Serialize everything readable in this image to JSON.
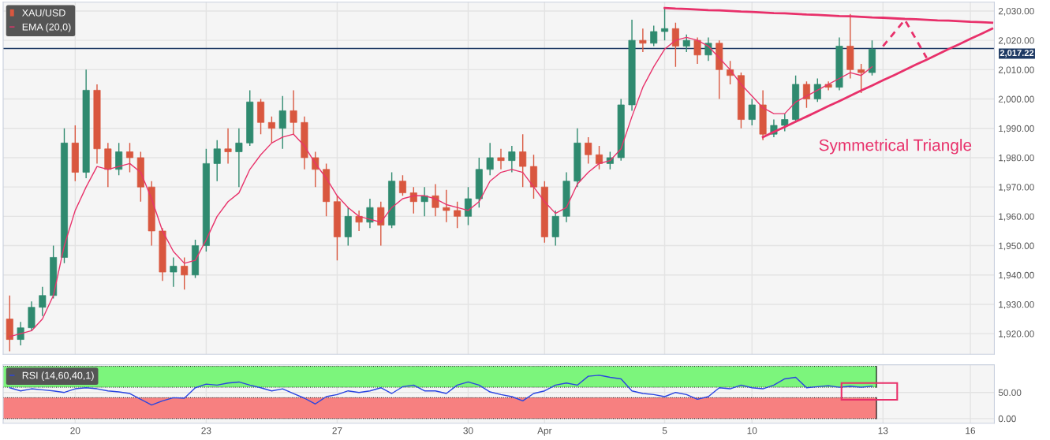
{
  "chart_data": [
    {
      "type": "candlestick",
      "categories": [
        null,
        null,
        null,
        null,
        null,
        null,
        null,
        null,
        null,
        null,
        null,
        null,
        null,
        null,
        null,
        null,
        null,
        null,
        null,
        null,
        null,
        null,
        null,
        null,
        null,
        null,
        null,
        null,
        null,
        null,
        null,
        null,
        null,
        null,
        null,
        null,
        null,
        null,
        null,
        null,
        null,
        null,
        null,
        null,
        null,
        null,
        null,
        null,
        null,
        null,
        null,
        null,
        null,
        null,
        null,
        null,
        null,
        null,
        null,
        null,
        null,
        null,
        null,
        null,
        null,
        null,
        null,
        null,
        null,
        null,
        null,
        null,
        null,
        null,
        null,
        null,
        null,
        null,
        null,
        null,
        null,
        null,
        null,
        null,
        null,
        null,
        null,
        null,
        null,
        null,
        null
      ],
      "ylim": [
        1913,
        2033
      ],
      "yticks": [
        {
          "value": 1920,
          "label": "1,920.00"
        },
        {
          "value": 1930,
          "label": "1,930.00"
        },
        {
          "value": 1940,
          "label": "1,940.00"
        },
        {
          "value": 1950,
          "label": "1,950.00"
        },
        {
          "value": 1960,
          "label": "1,960.00"
        },
        {
          "value": 1970,
          "label": "1,970.00"
        },
        {
          "value": 1980,
          "label": "1,980.00"
        },
        {
          "value": 1990,
          "label": "1,990.00"
        },
        {
          "value": 2000,
          "label": "2,000.00"
        },
        {
          "value": 2010,
          "label": "2,010.00"
        },
        {
          "value": 2020,
          "label": "2,020.00"
        },
        {
          "value": 2030,
          "label": "2,030.00"
        }
      ],
      "tick_labels": "y",
      "grid": true,
      "legend": "top left",
      "ref_lines": [
        {
          "axis": "y",
          "value": 2017.22,
          "label": "2,017.22",
          "color": "#1f3a64"
        }
      ],
      "annotations": [
        "Symmetrical Triangle"
      ],
      "series": [
        {
          "name": "XAU/USD",
          "type": "candlestick",
          "ohlc": [
            [
              1925,
              1933,
              1914,
              1918
            ],
            [
              1918,
              1924,
              1916,
              1922
            ],
            [
              1922,
              1931,
              1921,
              1929
            ],
            [
              1929,
              1936,
              1926,
              1933
            ],
            [
              1933,
              1950,
              1932,
              1946
            ],
            [
              1946,
              1990,
              1944,
              1985
            ],
            [
              1985,
              1991,
              1972,
              1975
            ],
            [
              1975,
              2010,
              1973,
              2003
            ],
            [
              2003,
              2005,
              1978,
              1983
            ],
            [
              1983,
              1985,
              1970,
              1976
            ],
            [
              1976,
              1985,
              1974,
              1982
            ],
            [
              1982,
              1985,
              1975,
              1980
            ],
            [
              1980,
              1982,
              1965,
              1970
            ],
            [
              1970,
              1972,
              1950,
              1955
            ],
            [
              1955,
              1956,
              1938,
              1941
            ],
            [
              1941,
              1946,
              1936,
              1943
            ],
            [
              1943,
              1946,
              1935,
              1940
            ],
            [
              1940,
              1952,
              1939,
              1950
            ],
            [
              1950,
              1983,
              1948,
              1978
            ],
            [
              1978,
              1986,
              1972,
              1983
            ],
            [
              1983,
              1990,
              1978,
              1982
            ],
            [
              1982,
              1990,
              1970,
              1985
            ],
            [
              1985,
              2003,
              1984,
              1999
            ],
            [
              1999,
              2000,
              1988,
              1992
            ],
            [
              1992,
              1994,
              1985,
              1990
            ],
            [
              1990,
              2001,
              1983,
              1996
            ],
            [
              1996,
              2003,
              1988,
              1992
            ],
            [
              1992,
              1994,
              1976,
              1980
            ],
            [
              1980,
              1982,
              1970,
              1976
            ],
            [
              1976,
              1978,
              1960,
              1965
            ],
            [
              1965,
              1967,
              1945,
              1953
            ],
            [
              1953,
              1963,
              1950,
              1960
            ],
            [
              1960,
              1962,
              1955,
              1958
            ],
            [
              1958,
              1966,
              1956,
              1963
            ],
            [
              1963,
              1965,
              1950,
              1957
            ],
            [
              1957,
              1975,
              1956,
              1972
            ],
            [
              1972,
              1974,
              1967,
              1968
            ],
            [
              1968,
              1970,
              1961,
              1965
            ],
            [
              1965,
              1970,
              1960,
              1967
            ],
            [
              1967,
              1971,
              1960,
              1963
            ],
            [
              1963,
              1969,
              1958,
              1962
            ],
            [
              1962,
              1965,
              1956,
              1960
            ],
            [
              1960,
              1970,
              1957,
              1966
            ],
            [
              1966,
              1980,
              1963,
              1976
            ],
            [
              1976,
              1985,
              1974,
              1980
            ],
            [
              1980,
              1983,
              1976,
              1979
            ],
            [
              1979,
              1984,
              1975,
              1982
            ],
            [
              1982,
              1988,
              1970,
              1977
            ],
            [
              1977,
              1981,
              1966,
              1970
            ],
            [
              1970,
              1972,
              1951,
              1953
            ],
            [
              1953,
              1962,
              1950,
              1960
            ],
            [
              1960,
              1975,
              1958,
              1972
            ],
            [
              1972,
              1990,
              1970,
              1985
            ],
            [
              1985,
              1987,
              1978,
              1981
            ],
            [
              1981,
              1984,
              1976,
              1978
            ],
            [
              1978,
              1982,
              1976,
              1980
            ],
            [
              1980,
              2000,
              1979,
              1998
            ],
            [
              1998,
              2027,
              1996,
              2020
            ],
            [
              2020,
              2024,
              2016,
              2019
            ],
            [
              2019,
              2025,
              2018,
              2023
            ],
            [
              2023,
              2031,
              2020,
              2024
            ],
            [
              2024,
              2026,
              2011,
              2018
            ],
            [
              2018,
              2022,
              2016,
              2020
            ],
            [
              2020,
              2021,
              2012,
              2015
            ],
            [
              2015,
              2021,
              2013,
              2019
            ],
            [
              2019,
              2020,
              2000,
              2010
            ],
            [
              2010,
              2013,
              2005,
              2008
            ],
            [
              2008,
              2009,
              1990,
              1993
            ],
            [
              1993,
              2000,
              1991,
              1998
            ],
            [
              1998,
              2003,
              1986,
              1988
            ],
            [
              1988,
              1993,
              1987,
              1991
            ],
            [
              1991,
              1995,
              1989,
              1993
            ],
            [
              1993,
              2008,
              1992,
              2005
            ],
            [
              2005,
              2006,
              1997,
              2000
            ],
            [
              2000,
              2007,
              1999,
              2005
            ],
            [
              2005,
              2006,
              2003,
              2004
            ],
            [
              2004,
              2021,
              2003,
              2018
            ],
            [
              2018,
              2029,
              2007,
              2010
            ],
            [
              2010,
              2012,
              2002,
              2009
            ],
            [
              2009,
              2020,
              2008,
              2017
            ],
            null,
            null,
            null,
            null,
            null,
            null,
            null,
            null,
            null,
            null,
            null
          ],
          "colors": [
            "#d9573f",
            "#2f8a6f",
            "#2f8a6f",
            "#2f8a6f",
            "#2f8a6f",
            "#2f8a6f",
            "#d9573f",
            "#2f8a6f",
            "#d9573f",
            "#d9573f",
            "#2f8a6f",
            "#d9573f",
            "#d9573f",
            "#d9573f",
            "#d9573f",
            "#2f8a6f",
            "#d9573f",
            "#2f8a6f",
            "#2f8a6f",
            "#2f8a6f",
            "#d9573f",
            "#2f8a6f",
            "#2f8a6f",
            "#d9573f",
            "#d9573f",
            "#2f8a6f",
            "#d9573f",
            "#d9573f",
            "#d9573f",
            "#d9573f",
            "#d9573f",
            "#2f8a6f",
            "#d9573f",
            "#2f8a6f",
            "#d9573f",
            "#2f8a6f",
            "#d9573f",
            "#d9573f",
            "#2f8a6f",
            "#d9573f",
            "#d9573f",
            "#d9573f",
            "#2f8a6f",
            "#2f8a6f",
            "#2f8a6f",
            "#d9573f",
            "#2f8a6f",
            "#d9573f",
            "#d9573f",
            "#d9573f",
            "#2f8a6f",
            "#2f8a6f",
            "#2f8a6f",
            "#d9573f",
            "#d9573f",
            "#2f8a6f",
            "#2f8a6f",
            "#2f8a6f",
            "#d9573f",
            "#2f8a6f",
            "#2f8a6f",
            "#d9573f",
            "#2f8a6f",
            "#d9573f",
            "#2f8a6f",
            "#d9573f",
            "#d9573f",
            "#d9573f",
            "#2f8a6f",
            "#d9573f",
            "#2f8a6f",
            "#2f8a6f",
            "#2f8a6f",
            "#d9573f",
            "#2f8a6f",
            "#d9573f",
            "#2f8a6f",
            "#d9573f",
            "#d9573f",
            "#2f8a6f",
            null,
            null,
            null,
            null,
            null,
            null,
            null,
            null,
            null,
            null,
            null
          ]
        },
        {
          "name": "EMA (20,0)",
          "type": "line",
          "color": "#e8336b",
          "values": [
            1919,
            1920,
            1921,
            1925,
            1933,
            1950,
            1962,
            1970,
            1977,
            1976,
            1977,
            1978,
            1975,
            1966,
            1955,
            1948,
            1944,
            1945,
            1952,
            1960,
            1965,
            1968,
            1976,
            1981,
            1985,
            1987,
            1988,
            1984,
            1978,
            1973,
            1967,
            1963,
            1960,
            1959,
            1958,
            1963,
            1966,
            1967,
            1967,
            1966,
            1964,
            1963,
            1962,
            1965,
            1972,
            1975,
            1976,
            1975,
            1970,
            1965,
            1961,
            1963,
            1971,
            1975,
            1978,
            1979,
            1983,
            1994,
            2004,
            2011,
            2017,
            2020,
            2021,
            2020,
            2018,
            2014,
            2010,
            2005,
            2001,
            1997,
            1995,
            1995,
            1999,
            2001,
            2003,
            2005,
            2007,
            2009,
            2008,
            2011,
            null,
            null,
            null,
            null,
            null,
            null,
            null,
            null,
            null,
            null,
            null
          ]
        },
        {
          "type": "line",
          "color": "#e8306a",
          "line_style": "solid",
          "values": [
            null,
            null,
            null,
            null,
            null,
            null,
            null,
            null,
            null,
            null,
            null,
            null,
            null,
            null,
            null,
            null,
            null,
            null,
            null,
            null,
            null,
            null,
            null,
            null,
            null,
            null,
            null,
            null,
            null,
            null,
            null,
            null,
            null,
            null,
            null,
            null,
            null,
            null,
            null,
            null,
            null,
            null,
            null,
            null,
            null,
            null,
            null,
            null,
            null,
            null,
            null,
            null,
            null,
            null,
            null,
            null,
            null,
            null,
            null,
            null,
            2031,
            2030.8,
            2030.7,
            2030.5,
            2030.3,
            2030.2,
            2030,
            2029.8,
            2029.7,
            2029.5,
            2029.3,
            2029.2,
            2029,
            2028.8,
            2028.7,
            2028.5,
            2028.3,
            2028.2,
            2028,
            2027.8,
            2027.7,
            2027.5,
            2027.3,
            2027.2,
            2027,
            2026.8,
            2026.7,
            2026.5,
            2026.3,
            2026.2,
            2026
          ]
        },
        {
          "type": "line",
          "color": "#e8306a",
          "line_style": "solid",
          "values": [
            null,
            null,
            null,
            null,
            null,
            null,
            null,
            null,
            null,
            null,
            null,
            null,
            null,
            null,
            null,
            null,
            null,
            null,
            null,
            null,
            null,
            null,
            null,
            null,
            null,
            null,
            null,
            null,
            null,
            null,
            null,
            null,
            null,
            null,
            null,
            null,
            null,
            null,
            null,
            null,
            null,
            null,
            null,
            null,
            null,
            null,
            null,
            null,
            null,
            null,
            null,
            null,
            null,
            null,
            null,
            null,
            null,
            null,
            null,
            null,
            null,
            null,
            null,
            null,
            null,
            null,
            null,
            null,
            null,
            1987,
            1988.8,
            1990.5,
            1992.3,
            1994,
            1995.8,
            1997.6,
            1999.3,
            2001.1,
            2002.9,
            2004.6,
            2006.4,
            2008.1,
            2009.9,
            2011.7,
            2013.4,
            2015.2,
            2017,
            2018.7,
            2020.5,
            2022.2,
            2024
          ]
        },
        {
          "type": "line",
          "color": "#e8306a",
          "line_style": "dashed",
          "values": [
            null,
            null,
            null,
            null,
            null,
            null,
            null,
            null,
            null,
            null,
            null,
            null,
            null,
            null,
            null,
            null,
            null,
            null,
            null,
            null,
            null,
            null,
            null,
            null,
            null,
            null,
            null,
            null,
            null,
            null,
            null,
            null,
            null,
            null,
            null,
            null,
            null,
            null,
            null,
            null,
            null,
            null,
            null,
            null,
            null,
            null,
            null,
            null,
            null,
            null,
            null,
            null,
            null,
            null,
            null,
            null,
            null,
            null,
            null,
            null,
            null,
            null,
            null,
            null,
            null,
            null,
            null,
            null,
            null,
            null,
            null,
            null,
            null,
            null,
            null,
            null,
            null,
            null,
            null,
            null,
            2018,
            2022.5,
            2027,
            2020.5,
            2014,
            null,
            null,
            null,
            null,
            null,
            null
          ]
        }
      ]
    },
    {
      "type": "line",
      "categories": [
        null,
        null,
        null,
        null,
        null,
        null,
        "20",
        null,
        null,
        null,
        null,
        null,
        null,
        null,
        null,
        null,
        null,
        null,
        "23",
        null,
        null,
        null,
        null,
        null,
        null,
        null,
        null,
        null,
        null,
        null,
        "27",
        null,
        null,
        null,
        null,
        null,
        null,
        null,
        null,
        null,
        null,
        null,
        "30",
        null,
        null,
        null,
        null,
        null,
        null,
        "Apr",
        null,
        null,
        null,
        null,
        null,
        null,
        null,
        null,
        null,
        null,
        "5",
        null,
        null,
        null,
        null,
        null,
        null,
        null,
        "10",
        null,
        null,
        null,
        null,
        null,
        null,
        null,
        null,
        null,
        null,
        null,
        "13",
        null,
        null,
        null,
        null,
        null,
        null,
        null,
        "16",
        null,
        null
      ],
      "ylim": [
        -9,
        103
      ],
      "yticks": [
        {
          "value": 0,
          "label": "0.00"
        },
        {
          "value": 50,
          "label": "50.00"
        }
      ],
      "grid": true,
      "legend": "top left",
      "bands": [
        {
          "axis": "y",
          "from": 60,
          "to": 100,
          "color": "#7cf57c"
        },
        {
          "axis": "y",
          "from": 0,
          "to": 40,
          "color": "#f78080"
        }
      ],
      "series": [
        {
          "name": "RSI (14,60,40,1)",
          "color": "#2b45e0",
          "values": [
            59,
            53,
            57,
            55,
            53,
            50,
            57,
            59,
            57,
            53,
            51,
            48,
            37,
            26,
            34,
            40,
            39,
            59,
            66,
            64,
            68,
            70,
            64,
            59,
            53,
            57,
            48,
            39,
            28,
            42,
            46,
            53,
            50,
            53,
            59,
            48,
            61,
            64,
            53,
            53,
            48,
            64,
            70,
            64,
            51,
            46,
            42,
            34,
            48,
            53,
            64,
            68,
            64,
            81,
            83,
            79,
            76,
            53,
            48,
            46,
            42,
            50,
            46,
            37,
            42,
            59,
            57,
            64,
            59,
            57,
            64,
            76,
            79,
            59,
            61,
            63,
            60,
            62,
            60,
            62,
            null,
            null,
            null,
            null,
            null,
            null,
            null,
            null,
            null,
            null,
            null
          ]
        }
      ]
    }
  ]
}
